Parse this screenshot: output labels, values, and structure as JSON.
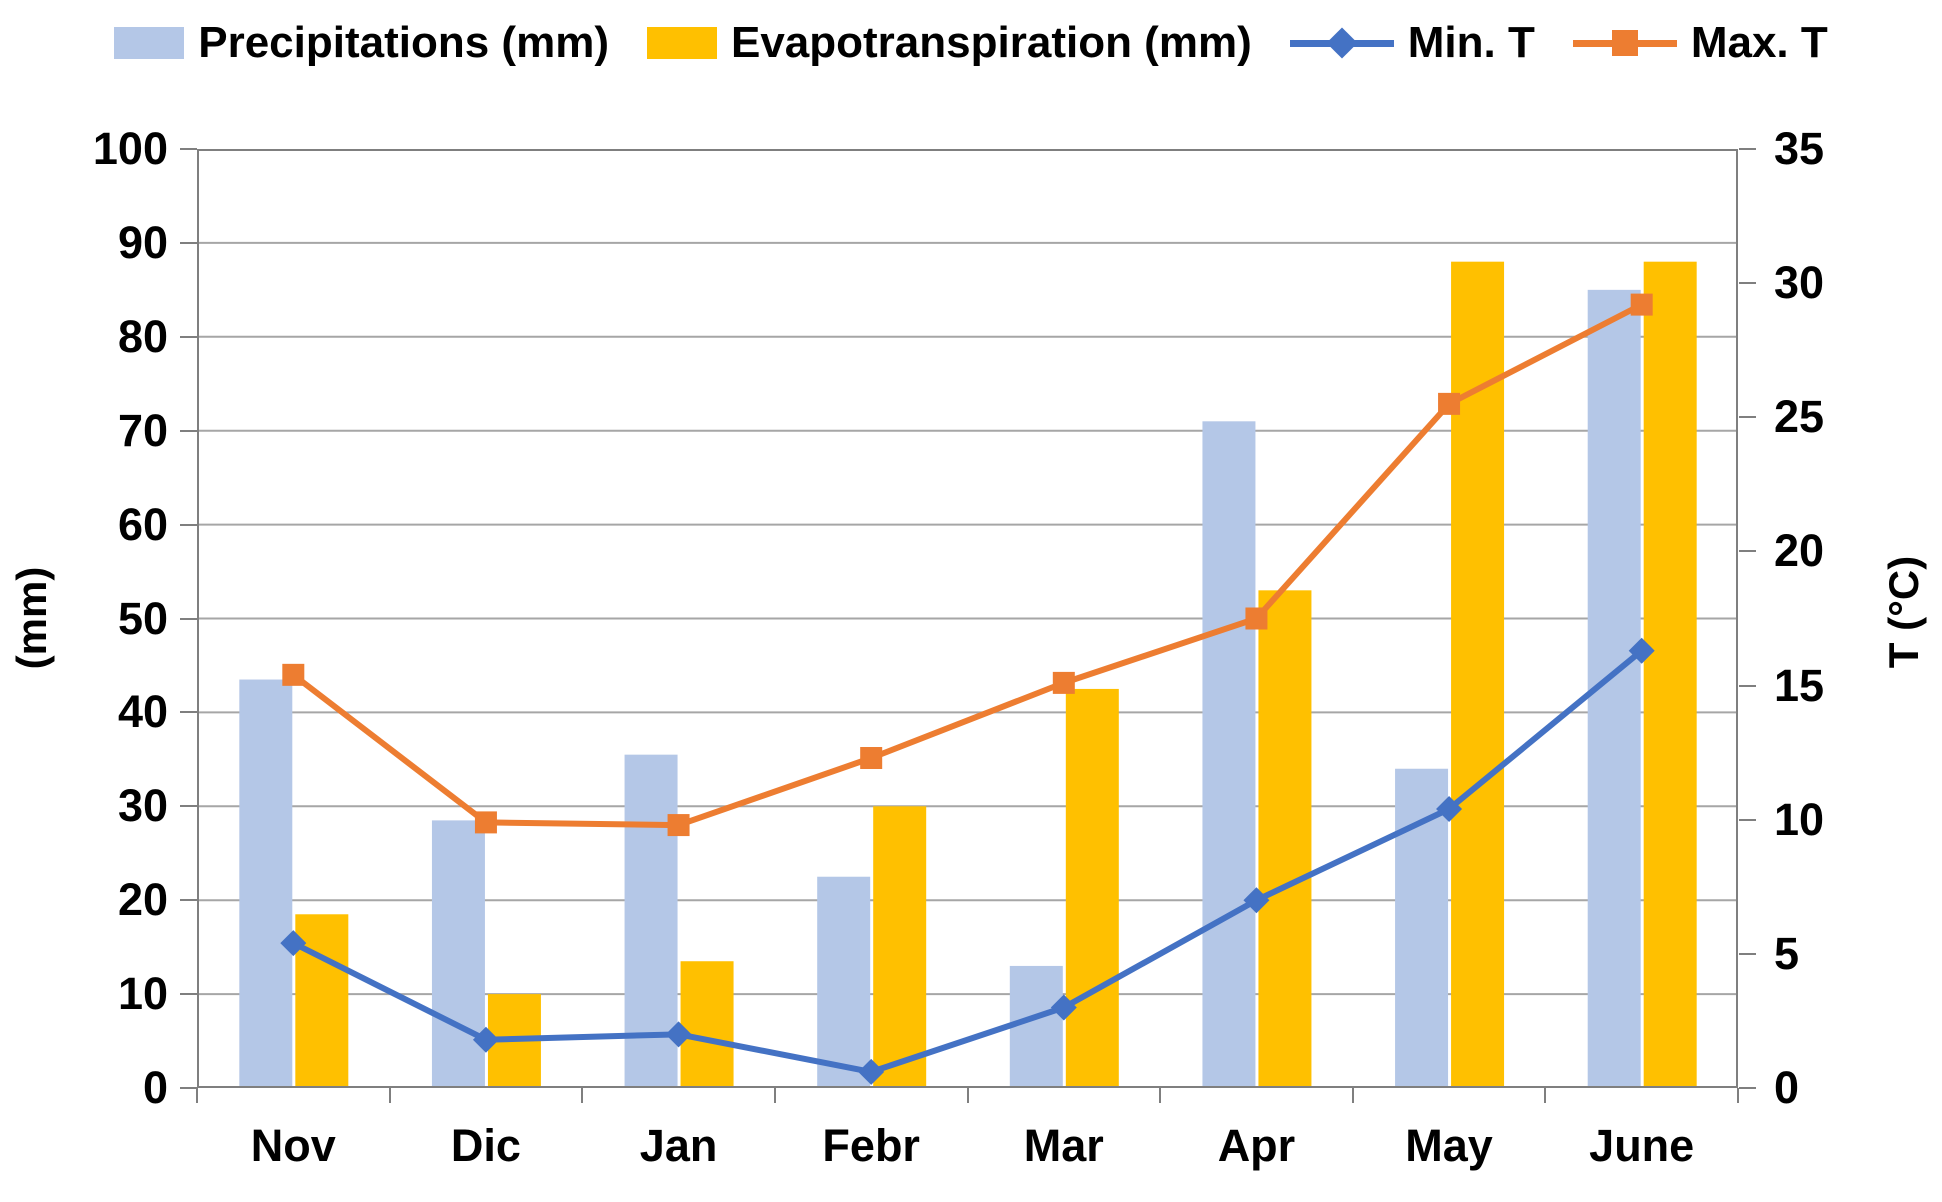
{
  "chart_data": {
    "type": "bar",
    "subtype": "combo-bar-line-dual-axis",
    "title": "",
    "categories": [
      "Nov",
      "Dic",
      "Jan",
      "Febr",
      "Mar",
      "Apr",
      "May",
      "June"
    ],
    "series": [
      {
        "name": "Precipitations (mm)",
        "type": "bar",
        "axis": "left",
        "color": "#B4C7E7",
        "values": [
          43.5,
          28.5,
          35.5,
          22.5,
          13,
          71,
          34,
          85
        ]
      },
      {
        "name": "Evapotranspiration (mm)",
        "type": "bar",
        "axis": "left",
        "color": "#FFC000",
        "values": [
          18.5,
          10,
          13.5,
          30,
          42.5,
          53,
          88,
          88
        ]
      },
      {
        "name": "Min. T",
        "type": "line",
        "axis": "right",
        "color": "#4472C4",
        "marker": "diamond",
        "values": [
          5.4,
          1.8,
          2,
          0.6,
          3,
          7,
          10.4,
          16.3
        ]
      },
      {
        "name": "Max. T",
        "type": "line",
        "axis": "right",
        "color": "#ED7D31",
        "marker": "square",
        "values": [
          15.4,
          9.9,
          9.8,
          12.3,
          15.1,
          17.5,
          25.5,
          29.2
        ]
      }
    ],
    "left_axis": {
      "title": "(mm)",
      "min": 0,
      "max": 100,
      "step": 10,
      "tick_labels": [
        "0",
        "10",
        "20",
        "30",
        "40",
        "50",
        "60",
        "70",
        "80",
        "90",
        "100"
      ]
    },
    "right_axis": {
      "title": "T (°C)",
      "min": 0,
      "max": 35,
      "step": 5,
      "tick_labels": [
        "0",
        "5",
        "10",
        "15",
        "20",
        "25",
        "30",
        "35"
      ]
    },
    "grid": true,
    "legend_position": "top"
  },
  "styles": {
    "background": "#FFFFFF",
    "grid_color": "#A6A6A6",
    "axis_color": "#7F7F7F",
    "text_color": "#000000",
    "precip_fill": "#B4C7E7",
    "evap_fill": "#FFC000",
    "min_t_color": "#4472C4",
    "max_t_color": "#ED7D31"
  }
}
